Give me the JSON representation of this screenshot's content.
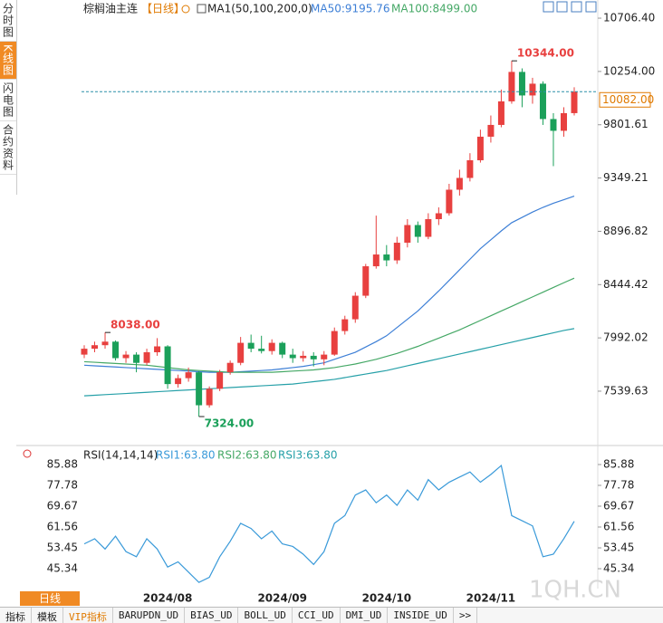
{
  "header": {
    "symbol": "棕榈油主连",
    "period": "【日线】"
  },
  "sidebar": [
    "分时图",
    "K线图",
    "闪电图",
    "合约资料"
  ],
  "chart_data": [
    {
      "type": "candlestick",
      "legend_title": "MA1(50,100,200,0)",
      "up_color": "#e8403f",
      "down_color": "#1ba05a",
      "ylim": [
        7109,
        10799
      ],
      "yticks": [
        {
          "value": 10706.4,
          "label": "10706.40"
        },
        {
          "value": 10254,
          "label": "10254.00"
        },
        {
          "value": 9801.61,
          "label": "9801.61"
        },
        {
          "value": 9349.21,
          "label": "9349.21"
        },
        {
          "value": 8896.82,
          "label": "8896.82"
        },
        {
          "value": 8444.42,
          "label": "8444.42"
        },
        {
          "value": 7992.02,
          "label": "7992.02"
        },
        {
          "value": 7539.63,
          "label": "7539.63"
        }
      ],
      "categories": [
        null,
        null,
        null,
        null,
        null,
        null,
        null,
        null,
        "2024/08",
        null,
        null,
        null,
        null,
        null,
        null,
        null,
        null,
        null,
        null,
        "2024/09",
        null,
        null,
        null,
        null,
        null,
        null,
        null,
        null,
        null,
        "2024/10",
        null,
        null,
        null,
        null,
        null,
        null,
        null,
        null,
        null,
        "2024/11",
        null,
        null,
        null,
        null,
        null,
        null,
        null,
        null
      ],
      "candles": [
        [
          7850,
          7930,
          7820,
          7900
        ],
        [
          7900,
          7960,
          7870,
          7930
        ],
        [
          7930,
          8038,
          7900,
          7960
        ],
        [
          7960,
          7970,
          7800,
          7820
        ],
        [
          7820,
          7880,
          7780,
          7850
        ],
        [
          7850,
          7870,
          7700,
          7780
        ],
        [
          7780,
          7900,
          7760,
          7870
        ],
        [
          7870,
          7990,
          7840,
          7920
        ],
        [
          7920,
          7930,
          7560,
          7600
        ],
        [
          7600,
          7680,
          7570,
          7650
        ],
        [
          7650,
          7740,
          7620,
          7700
        ],
        [
          7700,
          7710,
          7324,
          7420
        ],
        [
          7420,
          7580,
          7400,
          7560
        ],
        [
          7560,
          7720,
          7540,
          7700
        ],
        [
          7700,
          7800,
          7680,
          7780
        ],
        [
          7780,
          8000,
          7760,
          7950
        ],
        [
          7950,
          8020,
          7870,
          7900
        ],
        [
          7900,
          8010,
          7860,
          7880
        ],
        [
          7880,
          7980,
          7850,
          7950
        ],
        [
          7950,
          7960,
          7820,
          7850
        ],
        [
          7850,
          7900,
          7780,
          7820
        ],
        [
          7820,
          7880,
          7790,
          7840
        ],
        [
          7840,
          7870,
          7750,
          7810
        ],
        [
          7810,
          7880,
          7760,
          7850
        ],
        [
          7850,
          8080,
          7840,
          8050
        ],
        [
          8050,
          8180,
          8020,
          8150
        ],
        [
          8150,
          8380,
          8120,
          8350
        ],
        [
          8350,
          8620,
          8330,
          8600
        ],
        [
          8600,
          9030,
          8580,
          8700
        ],
        [
          8700,
          8780,
          8600,
          8650
        ],
        [
          8650,
          8850,
          8620,
          8800
        ],
        [
          8800,
          9000,
          8760,
          8950
        ],
        [
          8950,
          8980,
          8800,
          8850
        ],
        [
          8850,
          9050,
          8830,
          9000
        ],
        [
          9000,
          9100,
          8950,
          9050
        ],
        [
          9050,
          9300,
          9030,
          9250
        ],
        [
          9250,
          9420,
          9200,
          9350
        ],
        [
          9350,
          9560,
          9320,
          9500
        ],
        [
          9500,
          9760,
          9480,
          9700
        ],
        [
          9700,
          9880,
          9650,
          9800
        ],
        [
          9800,
          10100,
          9780,
          10000
        ],
        [
          10000,
          10344,
          9980,
          10250
        ],
        [
          10250,
          10280,
          9950,
          10050
        ],
        [
          10050,
          10200,
          9980,
          10150
        ],
        [
          10150,
          10170,
          9800,
          9850
        ],
        [
          9850,
          9900,
          9450,
          9750
        ],
        [
          9750,
          9950,
          9700,
          9900
        ],
        [
          9900,
          10120,
          9880,
          10082
        ]
      ],
      "series": [
        {
          "name": "MA50:9195.76",
          "color": "#3d7fd6",
          "values": [
            7760,
            7755,
            7750,
            7745,
            7740,
            7735,
            7730,
            7725,
            7720,
            7715,
            7710,
            7705,
            7700,
            7700,
            7700,
            7705,
            7710,
            7715,
            7720,
            7730,
            7740,
            7750,
            7765,
            7780,
            7810,
            7840,
            7870,
            7915,
            7960,
            8010,
            8080,
            8150,
            8220,
            8305,
            8390,
            8480,
            8570,
            8660,
            8750,
            8825,
            8900,
            8970,
            9015,
            9060,
            9100,
            9135,
            9165,
            9195.76
          ]
        },
        {
          "name": "MA100:8499.00",
          "color": "#45a866",
          "values": [
            7790,
            7785,
            7780,
            7775,
            7770,
            7765,
            7760,
            7750,
            7740,
            7730,
            7720,
            7715,
            7710,
            7705,
            7700,
            7700,
            7700,
            7700,
            7700,
            7705,
            7710,
            7715,
            7720,
            7730,
            7740,
            7755,
            7770,
            7790,
            7810,
            7835,
            7860,
            7890,
            7920,
            7955,
            7990,
            8025,
            8060,
            8100,
            8140,
            8180,
            8220,
            8260,
            8300,
            8340,
            8380,
            8420,
            8460,
            8499
          ]
        },
        {
          "color": "#26a0a8",
          "values": [
            7500,
            7505,
            7510,
            7515,
            7520,
            7525,
            7530,
            7535,
            7540,
            7545,
            7550,
            7555,
            7560,
            7565,
            7570,
            7575,
            7580,
            7585,
            7590,
            7595,
            7600,
            7610,
            7620,
            7630,
            7640,
            7655,
            7670,
            7685,
            7700,
            7715,
            7735,
            7755,
            7775,
            7795,
            7815,
            7835,
            7855,
            7875,
            7895,
            7915,
            7935,
            7955,
            7975,
            7995,
            8015,
            8035,
            8055,
            8071
          ]
        }
      ],
      "annotations": [
        {
          "index": 41,
          "value": 10344,
          "label": "10344.00",
          "color": "#e8403f"
        },
        {
          "index": 2,
          "value": 8038,
          "label": "8038.00",
          "color": "#e8403f"
        },
        {
          "index": 11,
          "value": 7324,
          "label": "7324.00",
          "color": "#1ba05a"
        }
      ],
      "last_price": {
        "value": 10082,
        "label": "10082.00"
      }
    },
    {
      "type": "line",
      "title": "RSI(14,14,14)",
      "ylim": [
        37.6,
        88.7
      ],
      "yticks": [
        85.88,
        77.78,
        69.67,
        61.56,
        53.45,
        45.34
      ],
      "series": [
        {
          "name": "RSI1:63.80",
          "color": "#3a9ad9",
          "values": [
            55,
            57,
            53,
            58,
            52,
            50,
            57,
            53,
            46,
            48,
            44,
            40,
            42,
            50,
            56,
            63,
            61,
            57,
            60,
            55,
            54,
            51,
            47,
            52,
            63,
            66,
            74,
            76,
            71,
            74,
            70,
            76,
            72,
            80,
            76,
            79,
            81,
            83,
            79,
            82,
            85.5,
            66,
            64,
            62,
            50,
            51,
            57,
            63.8
          ]
        }
      ],
      "legend_extra": [
        {
          "name": "RSI2:63.80",
          "color": "#45a866"
        },
        {
          "name": "RSI3:63.80",
          "color": "#26a0a8"
        }
      ]
    }
  ],
  "footer": {
    "period_button": "日线",
    "tabs": [
      "指标",
      "模板",
      "VIP指标",
      "BARUPDN_UD",
      "BIAS_UD",
      "BOLL_UD",
      "CCI_UD",
      "DMI_UD",
      "INSIDE_UD",
      ">>"
    ],
    "watermark": "1QH.CN"
  }
}
